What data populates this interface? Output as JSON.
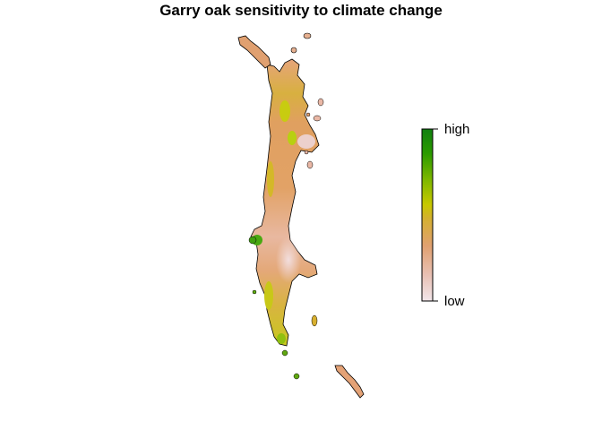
{
  "title": "Garry oak sensitivity to climate change",
  "legend": {
    "high_label": "high",
    "low_label": "low",
    "colors": [
      "#f2e6ea",
      "#e8c0b4",
      "#e0a070",
      "#d4b030",
      "#c8c800",
      "#80b800",
      "#2a9a00",
      "#108010"
    ]
  },
  "map_colors": {
    "outline": "#000000",
    "low": "#efd6d6",
    "mid_low": "#e8b090",
    "mid": "#e0a060",
    "mid_high": "#d8b030",
    "high": "#c8d000",
    "highest": "#50a810"
  }
}
